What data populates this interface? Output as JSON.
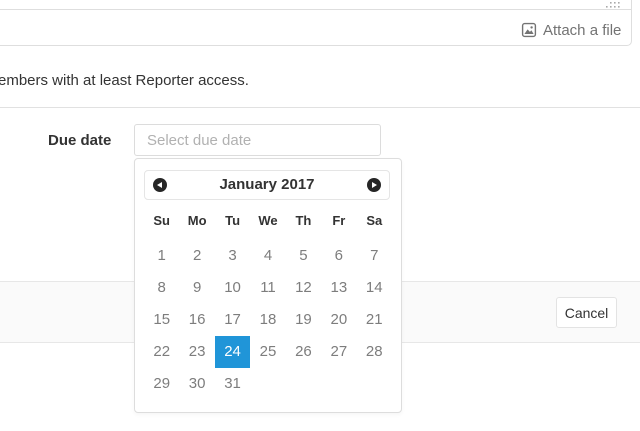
{
  "editor": {
    "attach_label": "Attach a file"
  },
  "help_text": "embers with at least Reporter access.",
  "form": {
    "due_date_label": "Due date",
    "due_date_placeholder": "Select due date"
  },
  "datepicker": {
    "month_year": "January 2017",
    "day_names": [
      "Su",
      "Mo",
      "Tu",
      "We",
      "Th",
      "Fr",
      "Sa"
    ],
    "weeks": [
      [
        "1",
        "2",
        "3",
        "4",
        "5",
        "6",
        "7"
      ],
      [
        "8",
        "9",
        "10",
        "11",
        "12",
        "13",
        "14"
      ],
      [
        "15",
        "16",
        "17",
        "18",
        "19",
        "20",
        "21"
      ],
      [
        "22",
        "23",
        "24",
        "25",
        "26",
        "27",
        "28"
      ],
      [
        "29",
        "30",
        "31",
        "",
        "",
        "",
        ""
      ]
    ],
    "selected_date": "24",
    "selected_color": "#2095d8",
    "selected_text_color": "#ffffff"
  },
  "footer": {
    "cancel_label": "Cancel"
  }
}
